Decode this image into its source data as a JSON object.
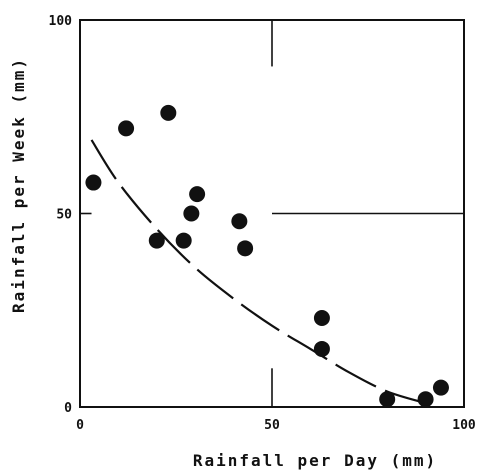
{
  "chart_data": {
    "type": "scatter",
    "xlabel": "Rainfall per Day (mm)",
    "ylabel": "Rainfall per Week (mm)",
    "xlim": [
      0,
      100
    ],
    "ylim": [
      0,
      100
    ],
    "x_ticks": [
      "0",
      "50",
      "100"
    ],
    "y_ticks": [
      "0",
      "50",
      "100"
    ],
    "grid": false,
    "reference_lines": [
      {
        "orientation": "vertical",
        "x": 50,
        "y_range": [
          88,
          100
        ]
      },
      {
        "orientation": "vertical",
        "x": 50,
        "y_range": [
          0,
          10
        ]
      },
      {
        "orientation": "horizontal",
        "y": 50,
        "x_range": [
          50,
          100
        ]
      },
      {
        "orientation": "horizontal",
        "y": 50,
        "x_range": [
          0,
          3
        ]
      }
    ],
    "series": [
      {
        "points": [
          {
            "x": 3.5,
            "y": 58
          },
          {
            "x": 12,
            "y": 72
          },
          {
            "x": 23,
            "y": 76
          },
          {
            "x": 20,
            "y": 43
          },
          {
            "x": 27,
            "y": 43
          },
          {
            "x": 29,
            "y": 50
          },
          {
            "x": 30.5,
            "y": 55
          },
          {
            "x": 41.5,
            "y": 48
          },
          {
            "x": 43,
            "y": 41
          },
          {
            "x": 63,
            "y": 23
          },
          {
            "x": 63,
            "y": 15
          },
          {
            "x": 80,
            "y": 2
          },
          {
            "x": 90,
            "y": 2
          },
          {
            "x": 94,
            "y": 5
          }
        ]
      }
    ],
    "fit_curve": {
      "style": "dashed",
      "points": [
        {
          "x": 3,
          "y": 69
        },
        {
          "x": 10,
          "y": 58
        },
        {
          "x": 20,
          "y": 46
        },
        {
          "x": 30,
          "y": 36
        },
        {
          "x": 40,
          "y": 28
        },
        {
          "x": 50,
          "y": 21
        },
        {
          "x": 60,
          "y": 15
        },
        {
          "x": 70,
          "y": 9
        },
        {
          "x": 80,
          "y": 4
        },
        {
          "x": 90,
          "y": 1
        }
      ]
    }
  }
}
